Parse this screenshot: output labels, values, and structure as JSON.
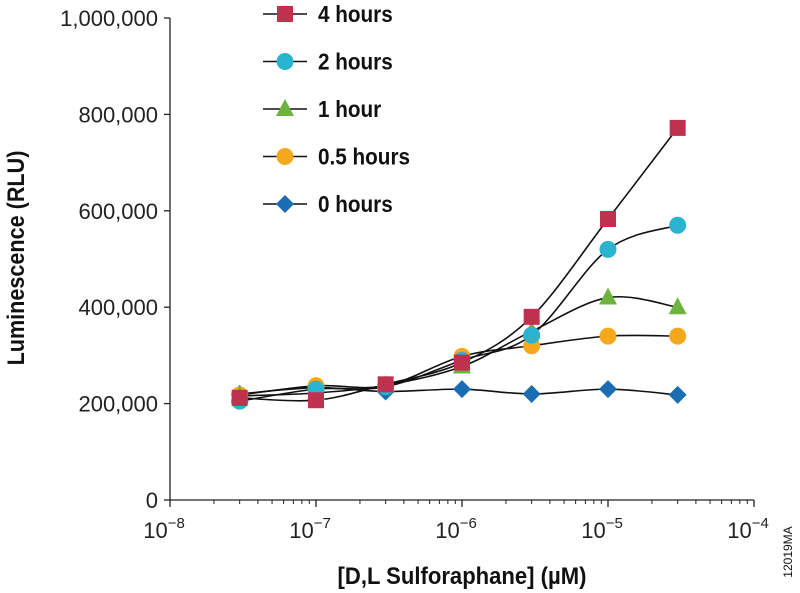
{
  "chart_data": {
    "type": "scatter",
    "xlabel": "[D,L Sulforaphane] (µM)",
    "ylabel": "Luminescence (RLU)",
    "x_scale": "log",
    "xlim": [
      1e-08,
      0.0001
    ],
    "ylim": [
      0,
      1000000
    ],
    "x_tick_exponents": [
      -8,
      -7,
      -6,
      -5,
      -4
    ],
    "y_ticks": [
      0,
      200000,
      400000,
      600000,
      800000,
      1000000
    ],
    "y_tick_labels": [
      "0",
      "200,000",
      "400,000",
      "600,000",
      "800,000",
      "1,000,000"
    ],
    "legend_placement": "top-left",
    "grid": false,
    "x": [
      3e-08,
      1e-07,
      3e-07,
      1e-06,
      3e-06,
      1e-05,
      3e-05
    ],
    "series": [
      {
        "name": "4 hours",
        "marker": "square",
        "color": "#c0304f",
        "values": [
          212000,
          207000,
          240000,
          285000,
          380000,
          583000,
          772000
        ]
      },
      {
        "name": "2 hours",
        "marker": "circle",
        "color": "#2bb4cf",
        "values": [
          205000,
          230000,
          235000,
          290000,
          342000,
          520000,
          570000
        ]
      },
      {
        "name": "1 hour",
        "marker": "triangle",
        "color": "#6db33f",
        "values": [
          216000,
          222000,
          238000,
          277000,
          350000,
          420000,
          400000
        ]
      },
      {
        "name": "0.5 hours",
        "marker": "circle",
        "color": "#f5a81c",
        "values": [
          218000,
          237000,
          237000,
          298000,
          320000,
          340000,
          340000
        ]
      },
      {
        "name": "0 hours",
        "marker": "diamond",
        "color": "#1a6db3",
        "values": [
          220000,
          233000,
          225000,
          230000,
          220000,
          230000,
          218000
        ]
      }
    ],
    "annotation": "12019MA"
  }
}
